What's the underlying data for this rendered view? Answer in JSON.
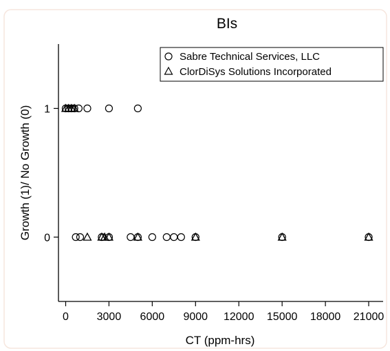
{
  "chart_data": {
    "type": "scatter",
    "title": "BIs",
    "xlabel": "CT (ppm-hrs)",
    "ylabel": "Growth (1)/ No Growth (0)",
    "xlim": [
      -500,
      22000
    ],
    "ylim": [
      -0.5,
      1.5
    ],
    "xticks": [
      0,
      3000,
      6000,
      9000,
      12000,
      15000,
      18000,
      21000
    ],
    "yticks": [
      0,
      1
    ],
    "grid": false,
    "legend_position": "top-right",
    "series": [
      {
        "name": "Sabre Technical Services, LLC",
        "marker": "circle",
        "color": "#000000",
        "points": [
          {
            "x": 0,
            "y": 1
          },
          {
            "x": 200,
            "y": 1
          },
          {
            "x": 400,
            "y": 1
          },
          {
            "x": 600,
            "y": 1
          },
          {
            "x": 900,
            "y": 1
          },
          {
            "x": 1500,
            "y": 1
          },
          {
            "x": 3000,
            "y": 1
          },
          {
            "x": 5000,
            "y": 1
          },
          {
            "x": 700,
            "y": 0
          },
          {
            "x": 1000,
            "y": 0
          },
          {
            "x": 2500,
            "y": 0
          },
          {
            "x": 3000,
            "y": 0
          },
          {
            "x": 4500,
            "y": 0
          },
          {
            "x": 5000,
            "y": 0
          },
          {
            "x": 6000,
            "y": 0
          },
          {
            "x": 7000,
            "y": 0
          },
          {
            "x": 7500,
            "y": 0
          },
          {
            "x": 8000,
            "y": 0
          },
          {
            "x": 9000,
            "y": 0
          },
          {
            "x": 15000,
            "y": 0
          },
          {
            "x": 21000,
            "y": 0
          }
        ]
      },
      {
        "name": "ClorDiSys Solutions Incorporated",
        "marker": "triangle",
        "color": "#000000",
        "points": [
          {
            "x": 0,
            "y": 1
          },
          {
            "x": 200,
            "y": 1
          },
          {
            "x": 400,
            "y": 1
          },
          {
            "x": 600,
            "y": 1
          },
          {
            "x": 1500,
            "y": 0
          },
          {
            "x": 2500,
            "y": 0
          },
          {
            "x": 2700,
            "y": 0
          },
          {
            "x": 3000,
            "y": 0
          },
          {
            "x": 5000,
            "y": 0
          },
          {
            "x": 9000,
            "y": 0
          },
          {
            "x": 15000,
            "y": 0
          },
          {
            "x": 21000,
            "y": 0
          }
        ]
      }
    ]
  }
}
